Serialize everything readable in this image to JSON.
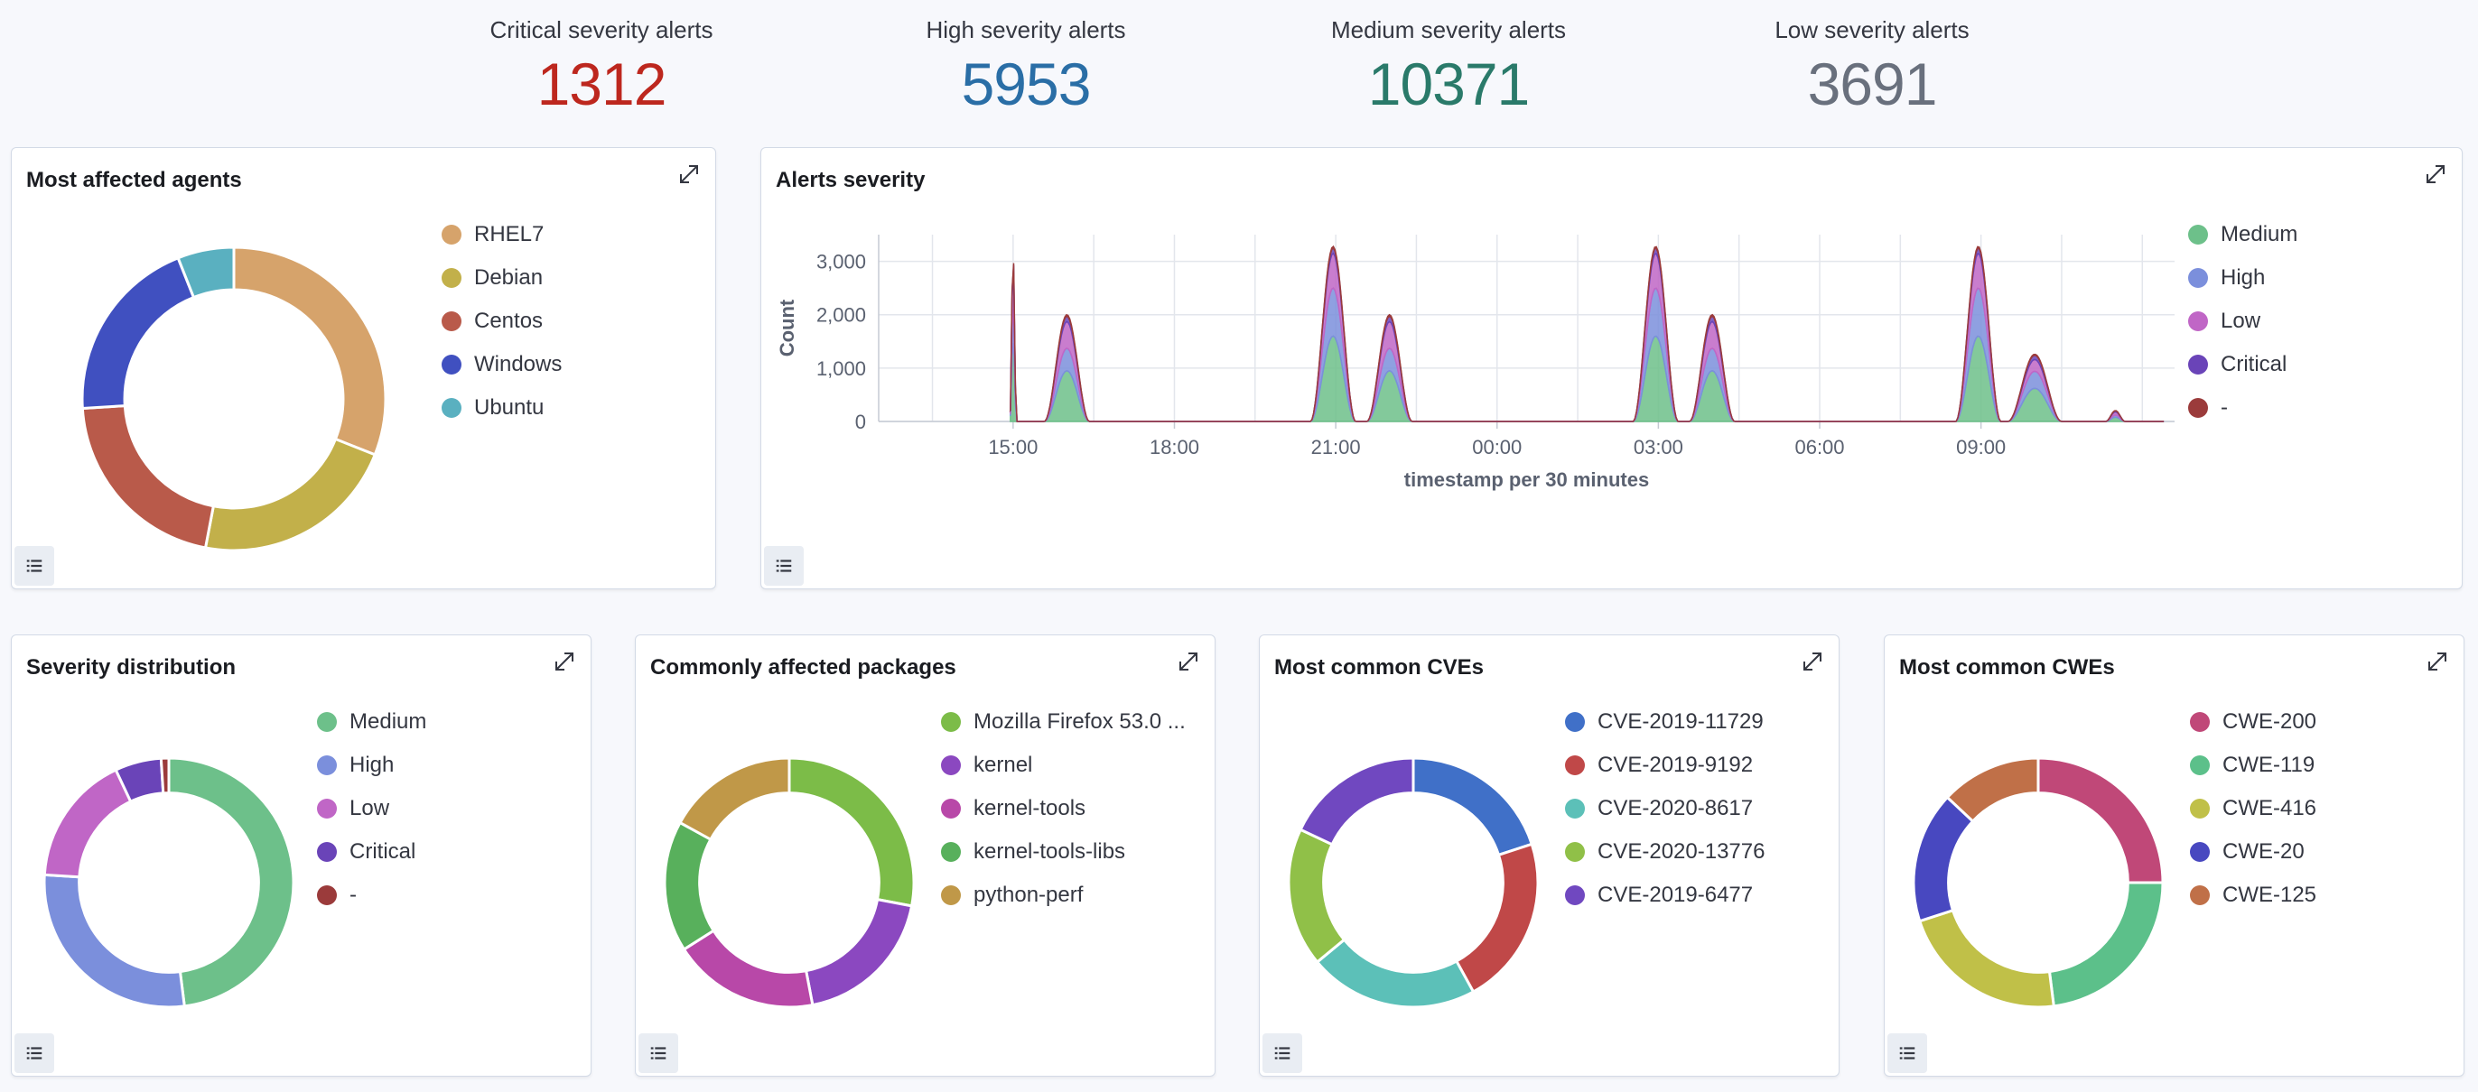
{
  "metrics": [
    {
      "label": "Critical severity alerts",
      "value": "1312",
      "color": "#bd271e"
    },
    {
      "label": "High severity alerts",
      "value": "5953",
      "color": "#2a6ea6"
    },
    {
      "label": "Medium severity alerts",
      "value": "10371",
      "color": "#2a7a6a"
    },
    {
      "label": "Low severity alerts",
      "value": "3691",
      "color": "#69707d"
    }
  ],
  "panels": {
    "agents": {
      "title": "Most affected agents"
    },
    "severity_chart": {
      "title": "Alerts severity"
    },
    "severity_distribution": {
      "title": "Severity distribution"
    },
    "packages": {
      "title": "Commonly affected packages"
    },
    "cves": {
      "title": "Most common CVEs"
    },
    "cwes": {
      "title": "Most common CWEs"
    }
  },
  "icons": {
    "expand": "expand-icon",
    "list": "list-icon"
  },
  "chart_data": [
    {
      "id": "agents",
      "type": "pie",
      "donut": true,
      "labels": [
        "RHEL7",
        "Debian",
        "Centos",
        "Windows",
        "Ubuntu"
      ],
      "values": [
        31,
        22,
        21,
        20,
        6
      ],
      "colors": [
        "#d6a36b",
        "#c2b04a",
        "#b95a4a",
        "#4050c0",
        "#5ab0c0"
      ]
    },
    {
      "id": "severity_area",
      "type": "area",
      "stacked": true,
      "title": "",
      "xlabel": "timestamp per 30 minutes",
      "ylabel": "Count",
      "x_ticks": [
        "15:00",
        "18:00",
        "21:00",
        "00:00",
        "03:00",
        "06:00",
        "09:00"
      ],
      "x_tick_hours": [
        15,
        18,
        21,
        24,
        27,
        30,
        33
      ],
      "xlim_hours": [
        12.5,
        36.6
      ],
      "y_ticks": [
        "0",
        "1,000",
        "2,000",
        "3,000"
      ],
      "y_tick_values": [
        0,
        1000,
        2000,
        3000
      ],
      "ylim": [
        0,
        3500
      ],
      "grid": true,
      "legend": "right",
      "series": [
        {
          "name": "Medium",
          "color": "#6dc08a",
          "peaks": [
            [
              15.0,
              1600,
              0.06
            ],
            [
              16.0,
              950,
              0.42
            ],
            [
              20.95,
              1600,
              0.42
            ],
            [
              22.0,
              950,
              0.42
            ],
            [
              26.95,
              1600,
              0.42
            ],
            [
              28.0,
              950,
              0.42
            ],
            [
              32.95,
              1600,
              0.42
            ],
            [
              34.0,
              620,
              0.5
            ],
            [
              35.5,
              80,
              0.18
            ]
          ]
        },
        {
          "name": "High",
          "color": "#7b8fdc",
          "peaks": [
            [
              15.0,
              700,
              0.06
            ],
            [
              16.0,
              420,
              0.42
            ],
            [
              20.95,
              900,
              0.42
            ],
            [
              22.0,
              420,
              0.42
            ],
            [
              26.95,
              900,
              0.42
            ],
            [
              28.0,
              420,
              0.42
            ],
            [
              32.95,
              900,
              0.42
            ],
            [
              34.0,
              320,
              0.5
            ],
            [
              35.5,
              40,
              0.18
            ]
          ]
        },
        {
          "name": "Low",
          "color": "#c066c6",
          "peaks": [
            [
              15.0,
              750,
              0.06
            ],
            [
              16.0,
              500,
              0.42
            ],
            [
              20.95,
              650,
              0.42
            ],
            [
              22.0,
              500,
              0.42
            ],
            [
              26.95,
              650,
              0.42
            ],
            [
              28.0,
              500,
              0.42
            ],
            [
              32.95,
              650,
              0.42
            ],
            [
              34.0,
              220,
              0.5
            ],
            [
              35.5,
              60,
              0.18
            ]
          ]
        },
        {
          "name": "Critical",
          "color": "#6a44b8",
          "peaks": [
            [
              15.0,
              150,
              0.06
            ],
            [
              16.0,
              100,
              0.42
            ],
            [
              20.95,
              100,
              0.42
            ],
            [
              22.0,
              100,
              0.42
            ],
            [
              26.95,
              100,
              0.42
            ],
            [
              28.0,
              100,
              0.42
            ],
            [
              32.95,
              100,
              0.42
            ],
            [
              34.0,
              80,
              0.5
            ],
            [
              35.5,
              20,
              0.18
            ]
          ]
        },
        {
          "name": "-",
          "color": "#9b3b3b",
          "peaks": [
            [
              15.0,
              40,
              0.06
            ],
            [
              16.0,
              30,
              0.42
            ],
            [
              20.95,
              30,
              0.42
            ],
            [
              22.0,
              30,
              0.42
            ],
            [
              26.95,
              30,
              0.42
            ],
            [
              28.0,
              30,
              0.42
            ],
            [
              32.95,
              30,
              0.42
            ],
            [
              34.0,
              20,
              0.5
            ],
            [
              35.5,
              5,
              0.18
            ]
          ]
        }
      ]
    },
    {
      "id": "severity_distribution",
      "type": "pie",
      "donut": true,
      "labels": [
        "Medium",
        "High",
        "Low",
        "Critical",
        "-"
      ],
      "values": [
        48,
        28,
        17,
        6,
        1
      ],
      "colors": [
        "#6dc08a",
        "#7b8fdc",
        "#c066c6",
        "#6a44b8",
        "#9b3b3b"
      ]
    },
    {
      "id": "packages",
      "type": "pie",
      "donut": true,
      "labels": [
        "Mozilla Firefox 53.0 ...",
        "kernel",
        "kernel-tools",
        "kernel-tools-libs",
        "python-perf"
      ],
      "values": [
        28,
        19,
        19,
        17,
        17
      ],
      "colors": [
        "#7cbc48",
        "#8b48c0",
        "#b848a8",
        "#58b05c",
        "#c09848"
      ]
    },
    {
      "id": "cves",
      "type": "pie",
      "donut": true,
      "labels": [
        "CVE-2019-11729",
        "CVE-2019-9192",
        "CVE-2020-8617",
        "CVE-2020-13776",
        "CVE-2019-6477"
      ],
      "values": [
        20,
        22,
        22,
        18,
        18
      ],
      "colors": [
        "#4070c8",
        "#c04848",
        "#5cc0b8",
        "#90c048",
        "#7048c0"
      ]
    },
    {
      "id": "cwes",
      "type": "pie",
      "donut": true,
      "labels": [
        "CWE-200",
        "CWE-119",
        "CWE-416",
        "CWE-20",
        "CWE-125"
      ],
      "values": [
        25,
        23,
        22,
        17,
        13
      ],
      "colors": [
        "#c04878",
        "#5cc08a",
        "#c0c048",
        "#4848c0",
        "#c07048"
      ]
    }
  ]
}
